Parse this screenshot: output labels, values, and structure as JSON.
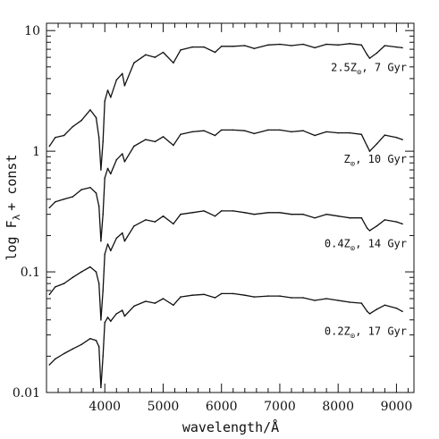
{
  "chart_data": {
    "type": "line",
    "xlabel": "wavelength/Å",
    "ylabel": "log Fλ + const",
    "ylabel_main": "log F",
    "ylabel_sub": "λ",
    "ylabel_rest": "+ const",
    "xlim": [
      3000,
      9300
    ],
    "ylim": [
      0.01,
      11.5
    ],
    "yscale": "log",
    "x_ticks": [
      4000,
      5000,
      6000,
      7000,
      8000,
      9000
    ],
    "x_tick_labels": [
      "4000",
      "5000",
      "6000",
      "7000",
      "8000",
      "9000"
    ],
    "y_ticks": [
      0.01,
      0.1,
      1,
      10
    ],
    "y_tick_labels": [
      "0.01",
      "0.1",
      "1",
      "10"
    ],
    "grid": false,
    "annotations": [
      {
        "z_prefix": "2.5Z",
        "sub": "⊙",
        "suffix": ",  7 Gyr"
      },
      {
        "z_prefix": "Z",
        "sub": "⊙",
        "suffix": ", 10 Gyr"
      },
      {
        "z_prefix": "0.4Z",
        "sub": "⊙",
        "suffix": ", 14 Gyr"
      },
      {
        "z_prefix": "0.2Z",
        "sub": "⊙",
        "suffix": ", 17 Gyr"
      }
    ],
    "series": [
      {
        "x": [
          3050,
          3150,
          3300,
          3450,
          3600,
          3750,
          3850,
          3900,
          3933,
          3968,
          4000,
          4050,
          4101,
          4200,
          4300,
          4340,
          4500,
          4700,
          4861,
          5000,
          5175,
          5300,
          5500,
          5700,
          5890,
          6000,
          6200,
          6400,
          6563,
          6800,
          7000,
          7200,
          7400,
          7600,
          7800,
          8000,
          8200,
          8400,
          8498,
          8542,
          8662,
          8800,
          9000,
          9100
        ],
        "y": [
          1.1,
          1.3,
          1.35,
          1.6,
          1.8,
          2.2,
          1.9,
          1.3,
          0.7,
          1.2,
          2.6,
          3.2,
          2.8,
          3.9,
          4.4,
          3.5,
          5.4,
          6.3,
          6.0,
          6.6,
          5.4,
          6.9,
          7.3,
          7.3,
          6.6,
          7.4,
          7.4,
          7.5,
          7.1,
          7.6,
          7.7,
          7.5,
          7.7,
          7.2,
          7.7,
          7.6,
          7.8,
          7.6,
          6.3,
          5.9,
          6.5,
          7.5,
          7.3,
          7.2
        ]
      },
      {
        "x": [
          3050,
          3150,
          3300,
          3450,
          3600,
          3750,
          3850,
          3900,
          3933,
          3968,
          4000,
          4050,
          4101,
          4200,
          4300,
          4340,
          4500,
          4700,
          4861,
          5000,
          5175,
          5300,
          5500,
          5700,
          5890,
          6000,
          6200,
          6400,
          6563,
          6800,
          7000,
          7200,
          7400,
          7600,
          7800,
          8000,
          8200,
          8400,
          8498,
          8542,
          8662,
          8800,
          9000,
          9100
        ],
        "y": [
          0.34,
          0.38,
          0.4,
          0.42,
          0.48,
          0.5,
          0.45,
          0.35,
          0.18,
          0.3,
          0.6,
          0.72,
          0.65,
          0.85,
          0.95,
          0.82,
          1.1,
          1.25,
          1.2,
          1.32,
          1.12,
          1.38,
          1.45,
          1.48,
          1.35,
          1.5,
          1.5,
          1.48,
          1.4,
          1.5,
          1.5,
          1.45,
          1.48,
          1.35,
          1.45,
          1.42,
          1.42,
          1.38,
          1.1,
          1.0,
          1.15,
          1.36,
          1.3,
          1.25
        ]
      },
      {
        "x": [
          3050,
          3150,
          3300,
          3450,
          3600,
          3750,
          3850,
          3900,
          3933,
          3968,
          4000,
          4050,
          4101,
          4200,
          4300,
          4340,
          4500,
          4700,
          4861,
          5000,
          5175,
          5300,
          5500,
          5700,
          5890,
          6000,
          6200,
          6400,
          6563,
          6800,
          7000,
          7200,
          7400,
          7600,
          7800,
          8000,
          8200,
          8400,
          8498,
          8542,
          8662,
          8800,
          9000,
          9100
        ],
        "y": [
          0.065,
          0.075,
          0.08,
          0.09,
          0.1,
          0.11,
          0.1,
          0.08,
          0.04,
          0.07,
          0.14,
          0.17,
          0.15,
          0.19,
          0.21,
          0.18,
          0.24,
          0.27,
          0.26,
          0.29,
          0.25,
          0.3,
          0.31,
          0.32,
          0.29,
          0.32,
          0.32,
          0.31,
          0.3,
          0.31,
          0.31,
          0.3,
          0.3,
          0.28,
          0.3,
          0.29,
          0.28,
          0.28,
          0.23,
          0.22,
          0.24,
          0.27,
          0.26,
          0.25
        ]
      },
      {
        "x": [
          3050,
          3150,
          3300,
          3450,
          3600,
          3750,
          3850,
          3900,
          3933,
          3968,
          4000,
          4050,
          4101,
          4200,
          4300,
          4340,
          4500,
          4700,
          4861,
          5000,
          5175,
          5300,
          5500,
          5700,
          5890,
          6000,
          6200,
          6400,
          6563,
          6800,
          7000,
          7200,
          7400,
          7600,
          7800,
          8000,
          8200,
          8400,
          8498,
          8542,
          8662,
          8800,
          9000,
          9100
        ],
        "y": [
          0.017,
          0.019,
          0.021,
          0.023,
          0.025,
          0.028,
          0.027,
          0.024,
          0.011,
          0.02,
          0.038,
          0.042,
          0.039,
          0.045,
          0.048,
          0.043,
          0.052,
          0.057,
          0.055,
          0.06,
          0.053,
          0.062,
          0.064,
          0.065,
          0.061,
          0.066,
          0.066,
          0.064,
          0.062,
          0.063,
          0.063,
          0.061,
          0.061,
          0.058,
          0.06,
          0.058,
          0.056,
          0.055,
          0.047,
          0.045,
          0.049,
          0.053,
          0.05,
          0.047
        ]
      }
    ]
  }
}
